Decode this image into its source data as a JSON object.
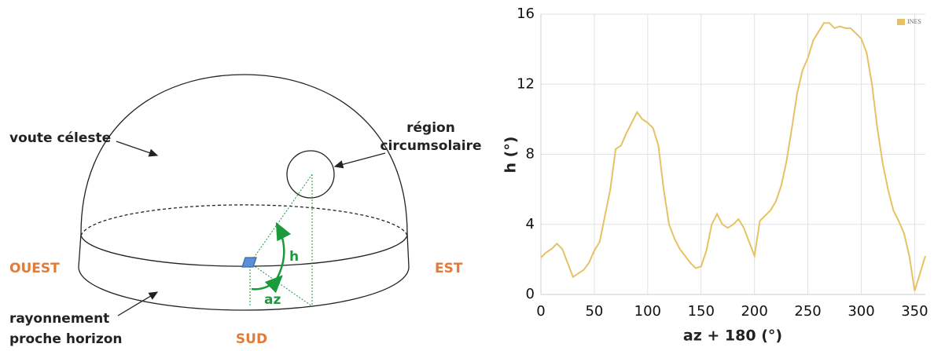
{
  "diagram": {
    "sky_label": "voute céleste",
    "circumsolar_label": [
      "région",
      "circumsolaire"
    ],
    "west": "OUEST",
    "east": "EST",
    "south": "SUD",
    "horizon_label": [
      "rayonnement",
      "proche horizon"
    ],
    "h_label": "h",
    "az_label": "az"
  },
  "chart_data": {
    "type": "line",
    "xlabel": "az + 180 (°)",
    "ylabel": "h (°)",
    "x": [
      0,
      5,
      10,
      15,
      20,
      25,
      30,
      35,
      40,
      45,
      50,
      55,
      60,
      65,
      70,
      75,
      80,
      85,
      90,
      95,
      100,
      105,
      110,
      115,
      120,
      125,
      130,
      135,
      140,
      145,
      150,
      155,
      160,
      165,
      170,
      175,
      180,
      185,
      190,
      195,
      200,
      205,
      210,
      215,
      220,
      225,
      230,
      235,
      240,
      245,
      250,
      255,
      260,
      265,
      270,
      275,
      280,
      285,
      290,
      295,
      300,
      305,
      310,
      315,
      320,
      325,
      330,
      335,
      340,
      345,
      350,
      355,
      360
    ],
    "series": [
      {
        "name": "INES",
        "color": "#e6c265",
        "values": [
          2.1,
          2.4,
          2.6,
          2.9,
          2.6,
          1.8,
          1.0,
          1.2,
          1.4,
          1.8,
          2.5,
          3.0,
          4.5,
          6.0,
          8.3,
          8.5,
          9.2,
          9.8,
          10.4,
          10.0,
          9.8,
          9.5,
          8.5,
          6.0,
          4.0,
          3.2,
          2.6,
          2.2,
          1.8,
          1.5,
          1.6,
          2.5,
          4.0,
          4.6,
          4.0,
          3.8,
          4.0,
          4.3,
          3.8,
          3.0,
          2.2,
          4.2,
          4.5,
          4.8,
          5.3,
          6.2,
          7.6,
          9.5,
          11.5,
          12.8,
          13.5,
          14.5,
          15.0,
          15.5,
          15.5,
          15.2,
          15.3,
          15.2,
          15.2,
          14.9,
          14.6,
          13.8,
          12.0,
          9.5,
          7.5,
          6.0,
          4.8,
          4.2,
          3.5,
          2.2,
          0.2,
          1.2,
          2.2
        ]
      }
    ],
    "xlim": [
      0,
      360
    ],
    "ylim": [
      0,
      16
    ],
    "xticks": [
      0,
      50,
      100,
      150,
      200,
      250,
      300,
      350
    ],
    "yticks": [
      0,
      4,
      8,
      12,
      16
    ],
    "grid": true,
    "legend": "top-right"
  }
}
